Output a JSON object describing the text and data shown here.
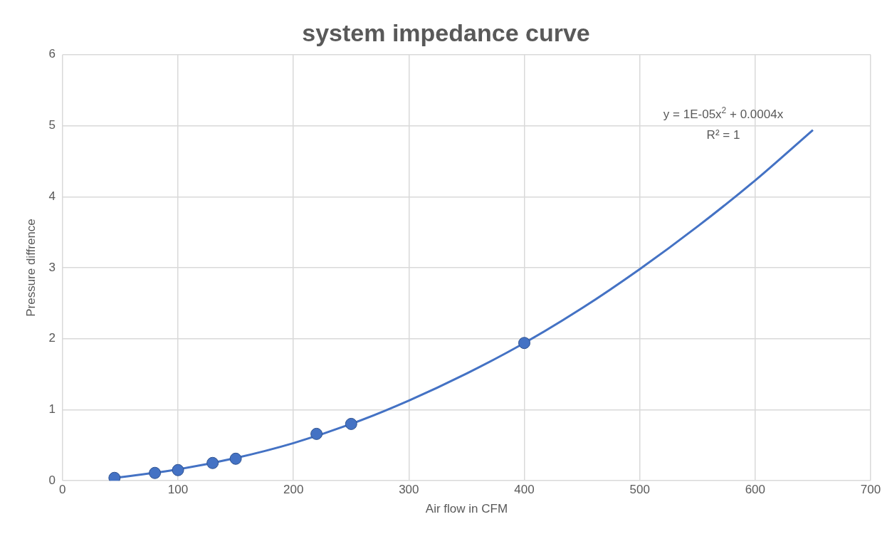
{
  "chart_data": {
    "type": "scatter",
    "title": "system impedance curve",
    "xlabel": "Air flow in CFM",
    "ylabel": "Pressure diffrence",
    "xlim": [
      0,
      700
    ],
    "xticks": [
      0,
      100,
      200,
      300,
      400,
      500,
      600,
      700
    ],
    "ylim": [
      0,
      6
    ],
    "yticks": [
      0,
      1,
      2,
      3,
      4,
      5,
      6
    ],
    "grid": true,
    "legend": false,
    "series": [
      {
        "type": "scatter",
        "color": "#4472c4",
        "marker": "circle",
        "x": [
          45,
          80,
          100,
          130,
          150,
          220,
          250,
          400
        ],
        "values": [
          0.04,
          0.11,
          0.15,
          0.25,
          0.31,
          0.66,
          0.8,
          1.94
        ]
      },
      {
        "type": "line",
        "color": "#4472c4",
        "marker": "none",
        "line_style": "solid",
        "x": [
          45,
          100,
          150,
          200,
          250,
          300,
          350,
          400,
          450,
          500,
          550,
          600,
          650
        ],
        "values": [
          0.04,
          0.16,
          0.32,
          0.53,
          0.8,
          1.13,
          1.51,
          1.94,
          2.43,
          2.98,
          3.58,
          4.23,
          4.94
        ]
      }
    ],
    "annotations": [
      "y = 1E-05x$^{2}$ + 0.0004x",
      "R² = 1"
    ]
  }
}
